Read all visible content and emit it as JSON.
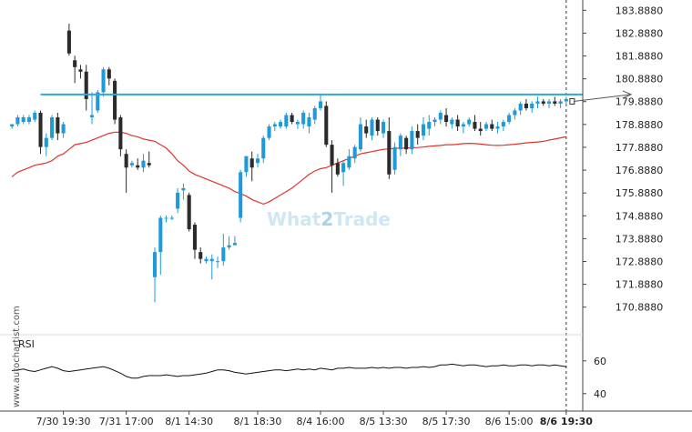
{
  "watermark": {
    "left": "What",
    "mid": "2",
    "right": "Trade"
  },
  "side_credit": "www.autochartist.com",
  "rsi_label": "RSI",
  "colors": {
    "up": "#1e9bd7",
    "down": "#2b2b2b",
    "resistance": "#2aa8e0",
    "ma": "#e0342b",
    "rsi": "#111111",
    "axis": "#444444",
    "forecast": "#555555"
  },
  "chart_data": [
    {
      "type": "candlestick",
      "title": "",
      "resistance_level": 180.2,
      "y_ticks": [
        "183.8880",
        "182.8880",
        "181.8880",
        "180.8880",
        "179.8880",
        "178.8880",
        "177.8880",
        "176.8880",
        "175.8880",
        "174.8880",
        "173.8880",
        "172.8880",
        "171.8880",
        "170.8880"
      ],
      "x_ticks": [
        "7/30 19:30",
        "7/31 17:00",
        "8/1 14:30",
        "8/1 18:30",
        "8/4 16:00",
        "8/5 13:30",
        "8/5 17:30",
        "8/6 15:00",
        "8/6 19:30"
      ],
      "x_tick_index": [
        9,
        20,
        31,
        43,
        54,
        65,
        76,
        87,
        97
      ],
      "bold_x_tick": "8/6 19:30",
      "ylim": [
        170.0,
        184.1
      ],
      "forecast": {
        "from": 179.9,
        "to": 180.2
      },
      "ma": [
        176.6,
        176.8,
        176.9,
        177.0,
        177.1,
        177.15,
        177.2,
        177.3,
        177.5,
        177.6,
        177.8,
        178.0,
        178.05,
        178.1,
        178.2,
        178.3,
        178.4,
        178.5,
        178.55,
        178.55,
        178.5,
        178.4,
        178.35,
        178.25,
        178.2,
        178.15,
        178.0,
        177.85,
        177.6,
        177.3,
        177.1,
        176.85,
        176.7,
        176.6,
        176.5,
        176.4,
        176.3,
        176.2,
        176.1,
        175.95,
        175.85,
        175.75,
        175.6,
        175.5,
        175.4,
        175.5,
        175.65,
        175.8,
        175.95,
        176.1,
        176.3,
        176.5,
        176.7,
        176.85,
        176.95,
        177.0,
        177.1,
        177.2,
        177.3,
        177.4,
        177.5,
        177.6,
        177.65,
        177.7,
        177.75,
        177.8,
        177.82,
        177.84,
        177.86,
        177.85,
        177.87,
        177.88,
        177.9,
        177.93,
        177.95,
        177.97,
        178.0,
        178.0,
        178.02,
        178.05,
        178.06,
        178.05,
        178.03,
        178.0,
        177.98,
        177.97,
        177.98,
        178.0,
        178.02,
        178.05,
        178.08,
        178.1,
        178.12,
        178.15,
        178.2,
        178.25,
        178.3,
        178.35
      ],
      "ohlc": [
        [
          178.8,
          178.9,
          178.7,
          178.9
        ],
        [
          178.9,
          179.3,
          178.8,
          179.2
        ],
        [
          179.0,
          179.3,
          178.9,
          179.2
        ],
        [
          179.0,
          179.3,
          178.9,
          179.2
        ],
        [
          179.1,
          179.5,
          179.0,
          179.4
        ],
        [
          179.4,
          179.5,
          177.6,
          177.9
        ],
        [
          177.9,
          178.5,
          177.5,
          178.3
        ],
        [
          178.3,
          179.3,
          178.2,
          179.2
        ],
        [
          179.2,
          179.4,
          178.2,
          178.5
        ],
        [
          178.5,
          179.0,
          178.3,
          178.9
        ],
        [
          183.0,
          183.3,
          181.9,
          182.0
        ],
        [
          181.7,
          181.9,
          180.7,
          181.4
        ],
        [
          181.3,
          181.5,
          180.9,
          181.2
        ],
        [
          181.2,
          181.5,
          179.5,
          180.0
        ],
        [
          179.2,
          180.3,
          178.9,
          179.3
        ],
        [
          179.5,
          180.4,
          179.4,
          180.3
        ],
        [
          180.3,
          181.4,
          180.1,
          181.3
        ],
        [
          181.3,
          181.4,
          180.6,
          180.9
        ],
        [
          180.8,
          180.9,
          178.9,
          179.1
        ],
        [
          179.2,
          179.3,
          177.5,
          177.8
        ],
        [
          177.6,
          177.8,
          175.9,
          177.0
        ],
        [
          177.1,
          177.3,
          177.0,
          177.2
        ],
        [
          177.1,
          177.4,
          176.9,
          177.0
        ],
        [
          177.0,
          177.6,
          176.8,
          177.3
        ],
        [
          177.2,
          177.7,
          177.0,
          177.1
        ],
        [
          172.2,
          173.5,
          171.1,
          173.3
        ],
        [
          173.3,
          174.9,
          172.3,
          174.8
        ],
        [
          174.8,
          174.9,
          174.6,
          174.8
        ],
        [
          174.8,
          174.9,
          174.7,
          174.8
        ],
        [
          175.2,
          176.1,
          175.0,
          175.9
        ],
        [
          176.0,
          176.3,
          175.6,
          176.1
        ],
        [
          175.8,
          175.9,
          174.2,
          174.3
        ],
        [
          174.5,
          174.6,
          173.0,
          173.4
        ],
        [
          173.3,
          173.5,
          172.8,
          173.0
        ],
        [
          172.9,
          173.1,
          172.8,
          173.0
        ],
        [
          172.9,
          173.2,
          172.1,
          173.0
        ],
        [
          172.9,
          173.1,
          172.6,
          172.9
        ],
        [
          172.9,
          174.1,
          172.7,
          173.5
        ],
        [
          173.5,
          174.0,
          173.4,
          173.6
        ],
        [
          173.6,
          174.0,
          173.6,
          173.7
        ],
        [
          174.8,
          176.9,
          174.6,
          176.8
        ],
        [
          176.8,
          177.5,
          176.6,
          177.5
        ],
        [
          177.4,
          177.7,
          176.4,
          177.0
        ],
        [
          177.2,
          177.6,
          177.0,
          177.4
        ],
        [
          177.4,
          178.4,
          177.2,
          178.3
        ],
        [
          178.3,
          178.9,
          178.2,
          178.8
        ],
        [
          178.8,
          179.0,
          178.6,
          178.9
        ],
        [
          178.8,
          179.1,
          178.7,
          179.0
        ],
        [
          178.8,
          179.4,
          178.7,
          179.3
        ],
        [
          179.3,
          179.4,
          178.9,
          179.0
        ],
        [
          178.9,
          179.1,
          178.7,
          179.0
        ],
        [
          178.9,
          179.5,
          178.7,
          179.4
        ],
        [
          178.8,
          179.4,
          178.5,
          179.2
        ],
        [
          179.1,
          179.7,
          178.9,
          179.6
        ],
        [
          179.6,
          180.2,
          179.5,
          179.9
        ],
        [
          179.7,
          179.9,
          177.9,
          178.0
        ],
        [
          178.0,
          178.2,
          175.9,
          177.1
        ],
        [
          177.2,
          177.4,
          176.6,
          176.7
        ],
        [
          176.8,
          177.3,
          176.2,
          177.2
        ],
        [
          177.0,
          177.8,
          176.9,
          177.5
        ],
        [
          177.4,
          178.0,
          177.2,
          177.9
        ],
        [
          177.8,
          179.2,
          177.7,
          178.9
        ],
        [
          178.8,
          179.1,
          178.3,
          178.5
        ],
        [
          178.4,
          179.2,
          178.2,
          179.1
        ],
        [
          179.1,
          179.2,
          178.4,
          178.6
        ],
        [
          178.5,
          179.1,
          178.3,
          179.0
        ],
        [
          178.6,
          179.2,
          176.5,
          176.7
        ],
        [
          176.9,
          178.1,
          176.7,
          177.9
        ],
        [
          177.8,
          178.5,
          177.5,
          178.4
        ],
        [
          178.3,
          178.4,
          177.6,
          177.8
        ],
        [
          177.8,
          178.8,
          177.6,
          178.6
        ],
        [
          178.6,
          178.9,
          178.0,
          178.3
        ],
        [
          178.4,
          179.2,
          178.2,
          178.9
        ],
        [
          178.7,
          179.3,
          178.4,
          179.0
        ],
        [
          179.0,
          179.2,
          178.8,
          179.1
        ],
        [
          179.1,
          179.5,
          178.9,
          179.4
        ],
        [
          179.3,
          179.6,
          178.8,
          179.0
        ],
        [
          178.9,
          179.2,
          178.7,
          179.1
        ],
        [
          179.1,
          179.3,
          178.6,
          178.8
        ],
        [
          178.8,
          179.0,
          178.5,
          178.9
        ],
        [
          178.9,
          179.2,
          178.8,
          179.1
        ],
        [
          179.0,
          179.3,
          178.6,
          178.7
        ],
        [
          178.7,
          179.0,
          178.4,
          178.6
        ],
        [
          178.7,
          179.0,
          178.6,
          178.9
        ],
        [
          178.9,
          179.1,
          178.6,
          178.7
        ],
        [
          178.7,
          179.0,
          178.5,
          178.8
        ],
        [
          178.8,
          179.1,
          178.6,
          179.0
        ],
        [
          179.0,
          179.4,
          178.9,
          179.3
        ],
        [
          179.3,
          179.6,
          179.1,
          179.5
        ],
        [
          179.5,
          179.9,
          179.3,
          179.8
        ],
        [
          179.8,
          180.0,
          179.5,
          179.6
        ],
        [
          179.6,
          179.9,
          179.4,
          179.8
        ],
        [
          179.8,
          180.1,
          179.6,
          179.9
        ],
        [
          179.9,
          180.0,
          179.7,
          179.8
        ],
        [
          179.8,
          180.0,
          179.6,
          179.9
        ],
        [
          179.9,
          180.1,
          179.7,
          179.8
        ],
        [
          179.8,
          180.0,
          179.6,
          179.9
        ],
        [
          179.9,
          180.1,
          179.7,
          180.0
        ]
      ]
    },
    {
      "type": "line",
      "title": "RSI",
      "y_ticks": [
        "60",
        "40"
      ],
      "ylim": [
        36,
        66
      ],
      "values": [
        54.0,
        54.5,
        55.0,
        54.0,
        53.5,
        54.5,
        55.5,
        56.5,
        55.5,
        54.0,
        53.5,
        54.0,
        54.5,
        55.0,
        55.5,
        56.0,
        56.5,
        55.5,
        54.0,
        52.5,
        50.5,
        49.5,
        49.5,
        50.5,
        51.0,
        51.0,
        51.0,
        51.5,
        51.0,
        50.5,
        51.0,
        51.0,
        51.5,
        52.0,
        52.5,
        53.5,
        54.5,
        54.5,
        54.0,
        53.0,
        52.5,
        52.0,
        52.5,
        53.0,
        53.5,
        54.0,
        54.5,
        54.5,
        54.0,
        54.5,
        55.0,
        54.5,
        55.0,
        54.5,
        55.5,
        55.0,
        54.5,
        55.5,
        55.5,
        56.0,
        55.5,
        55.5,
        55.5,
        56.0,
        55.5,
        56.0,
        55.5,
        56.0,
        56.0,
        55.5,
        56.0,
        56.0,
        56.5,
        56.0,
        56.5,
        57.5,
        57.5,
        58.0,
        57.5,
        57.0,
        57.5,
        57.5,
        57.0,
        56.5,
        57.0,
        57.0,
        57.5,
        57.0,
        57.0,
        57.5,
        57.5,
        57.0,
        57.5,
        57.5,
        57.0,
        57.5,
        57.0,
        56.5
      ]
    }
  ]
}
